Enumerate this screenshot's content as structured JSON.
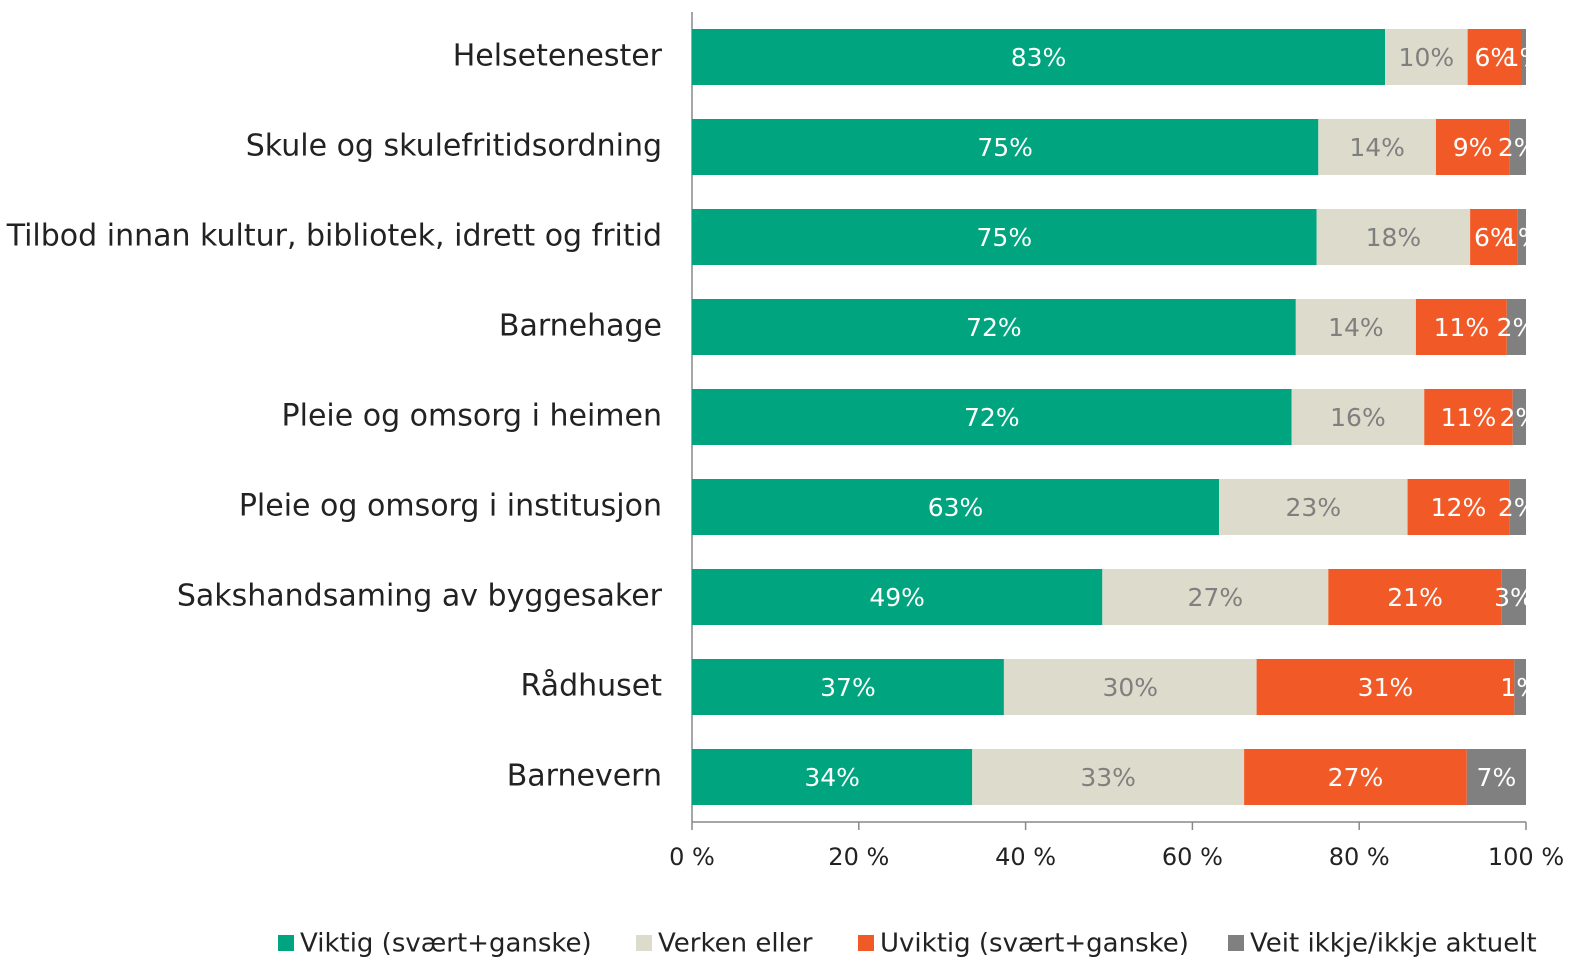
{
  "chart_data": {
    "type": "stacked-bar-horizontal",
    "categories": [
      "Helsetenester",
      "Skule og skulefritidsordning",
      "Tilbod innan kultur, bibliotek, idrett og fritid",
      "Barnehage",
      "Pleie og omsorg i heimen",
      "Pleie og omsorg i institusjon",
      "Sakshandsaming av byggesaker",
      "Rådhuset",
      "Barnevern"
    ],
    "series": [
      {
        "name": "Viktig (svært+ganske)",
        "color": "#00a47e",
        "label_color": "#ffffff",
        "values": [
          83.1,
          75.1,
          74.9,
          72.4,
          71.9,
          63.2,
          49.2,
          37.4,
          33.6
        ],
        "value_labels": [
          "83%",
          "75%",
          "75%",
          "72%",
          "72%",
          "63%",
          "49%",
          "37%",
          "34%"
        ]
      },
      {
        "name": "Verken eller",
        "color": "#dddbcc",
        "label_color": "#7f7f7f",
        "values": [
          9.9,
          14.1,
          18.4,
          14.4,
          15.9,
          22.6,
          27.1,
          30.3,
          32.6
        ],
        "value_labels": [
          "10%",
          "14%",
          "18%",
          "14%",
          "16%",
          "23%",
          "27%",
          "30%",
          "33%"
        ]
      },
      {
        "name": "Uviktig (svært+ganske)",
        "color": "#f15a27",
        "label_color": "#ffffff",
        "values": [
          6.4,
          8.8,
          5.7,
          10.9,
          10.6,
          12.2,
          20.8,
          30.9,
          26.7
        ],
        "value_labels": [
          "6%",
          "9%",
          "6%",
          "11%",
          "11%",
          "12%",
          "21%",
          "31%",
          "27%"
        ]
      },
      {
        "name": "Veit ikkje/ikkje aktuelt",
        "color": "#808080",
        "label_color": "#ffffff",
        "values": [
          0.6,
          2.0,
          1.0,
          2.3,
          1.6,
          2.0,
          2.9,
          1.4,
          7.1
        ],
        "value_labels": [
          "1%",
          "2%",
          "1%",
          "2%",
          "2%",
          "2%",
          "3%",
          "1%",
          "7%"
        ]
      }
    ],
    "xlim": [
      0,
      100
    ],
    "xticks": [
      {
        "value": 0,
        "label": "0 %"
      },
      {
        "value": 20,
        "label": "20 %"
      },
      {
        "value": 40,
        "label": "40 %"
      },
      {
        "value": 60,
        "label": "60 %"
      },
      {
        "value": 80,
        "label": "80 %"
      },
      {
        "value": 100,
        "label": "100 %"
      }
    ],
    "legend": "bottom"
  }
}
